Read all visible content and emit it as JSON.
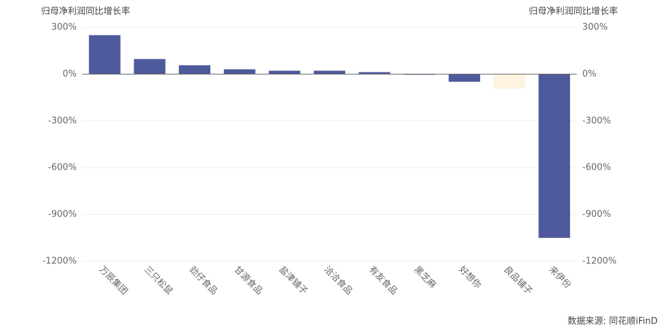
{
  "chart_data": {
    "type": "bar",
    "ylabel": "归母净利润同比增长率",
    "y2label": "归母净利润同比增长率",
    "categories": [
      "万辰集团",
      "三只松鼠",
      "劲仔食品",
      "甘源食品",
      "盐津铺子",
      "洽洽食品",
      "有友食品",
      "黑芝麻",
      "好想你",
      "良品铺子",
      "来伊份"
    ],
    "values": [
      250,
      97,
      57,
      31,
      22,
      22,
      13,
      -4,
      -49,
      -93,
      -1050
    ],
    "colors": [
      "#4e5a9c",
      "#4e5a9c",
      "#4e5a9c",
      "#4e5a9c",
      "#4e5a9c",
      "#4e5a9c",
      "#4e5a9c",
      "#4e5a9c",
      "#4e5a9c",
      "#fdf3e0",
      "#4e5a9c"
    ],
    "ylim": [
      -1200,
      300
    ],
    "yticks": [
      {
        "value": 300,
        "label": "300%"
      },
      {
        "value": 0,
        "label": "0%"
      },
      {
        "value": -300,
        "label": "-300%"
      },
      {
        "value": -600,
        "label": "-600%"
      },
      {
        "value": -900,
        "label": "-900%"
      },
      {
        "value": -1200,
        "label": "-1200%"
      }
    ],
    "y2lim": [
      -1200,
      300
    ],
    "y2ticks": [
      {
        "value": 300,
        "label": "300%"
      },
      {
        "value": 0,
        "label": "0%"
      },
      {
        "value": -300,
        "label": "-300%"
      },
      {
        "value": -600,
        "label": "-600%"
      },
      {
        "value": -900,
        "label": "-900%"
      },
      {
        "value": -1200,
        "label": "-1200%"
      }
    ],
    "grid": true,
    "source": "数据来源: 同花顺iFinD"
  }
}
